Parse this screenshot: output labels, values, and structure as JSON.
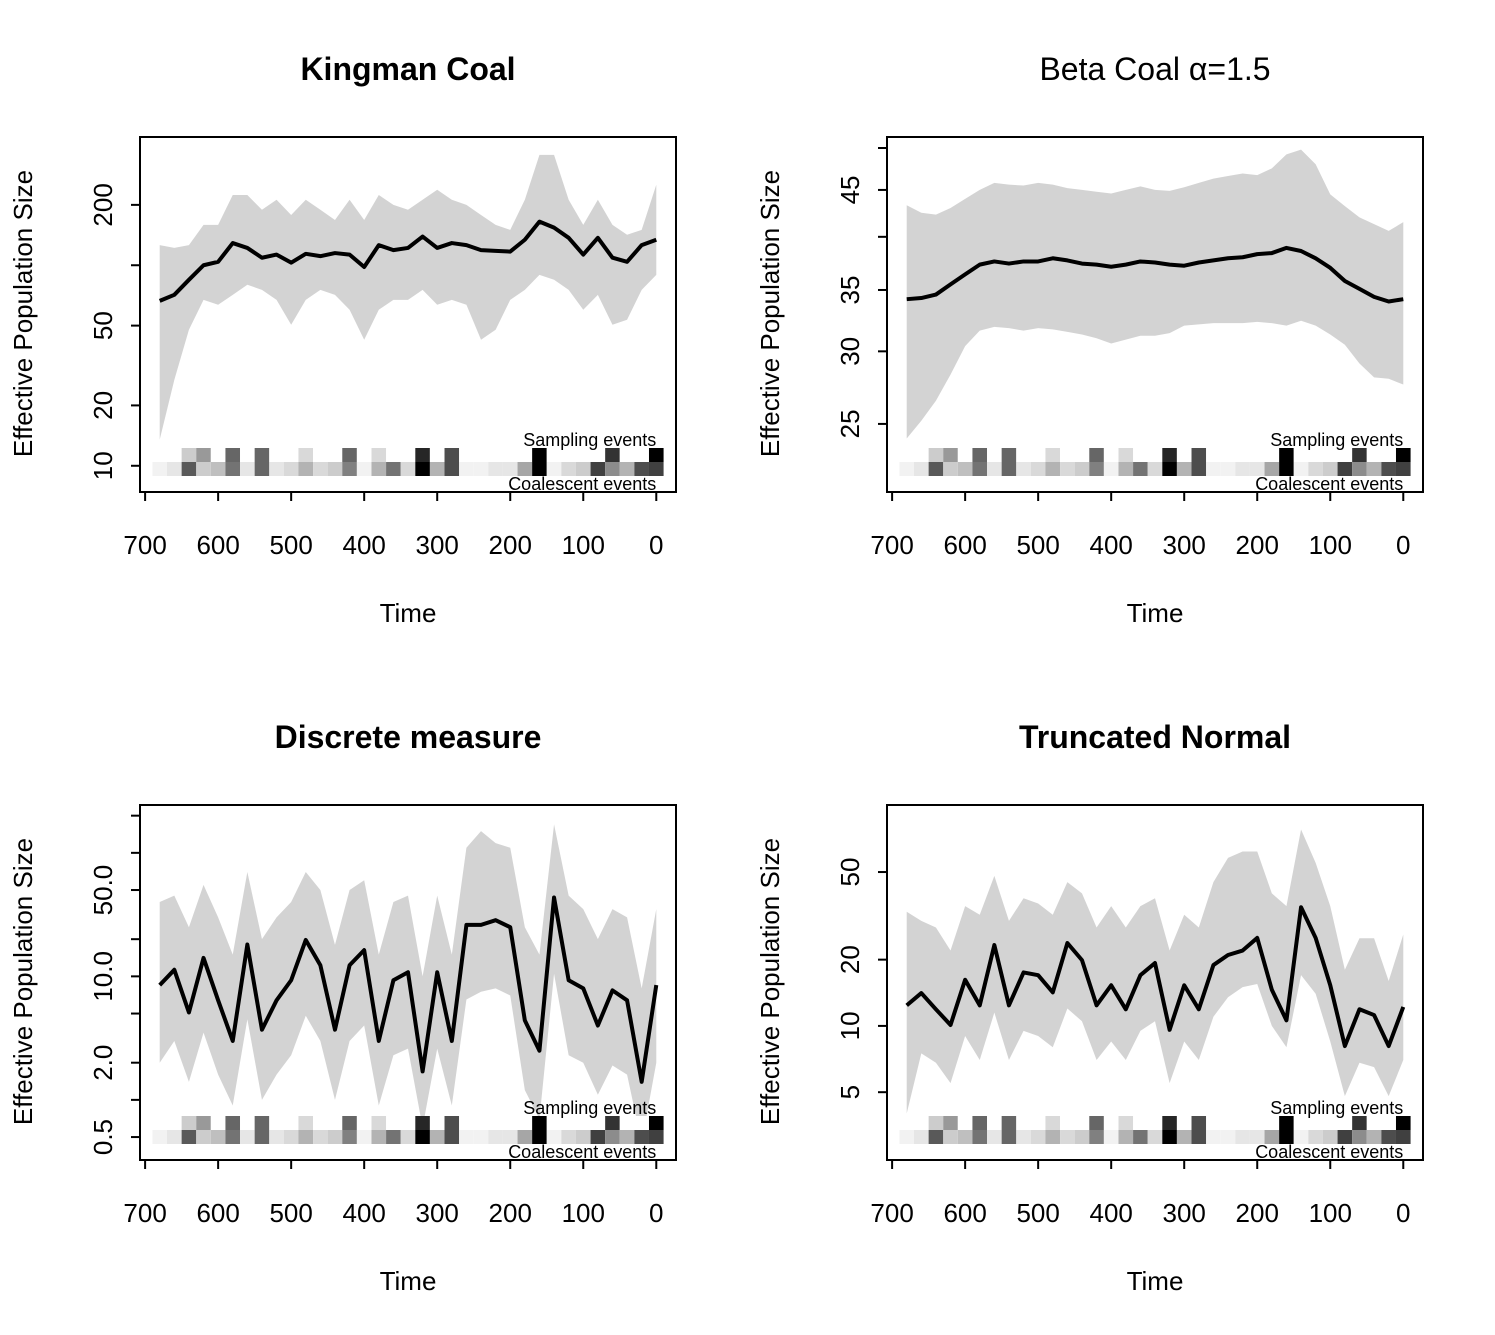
{
  "chart_data": [
    {
      "type": "line",
      "title": "Kingman Coal",
      "title_bold": true,
      "xlabel": "Time",
      "ylabel": "Effective Population Size",
      "x": [
        680,
        660,
        640,
        620,
        600,
        580,
        560,
        540,
        520,
        500,
        480,
        460,
        440,
        420,
        400,
        380,
        360,
        340,
        320,
        300,
        280,
        260,
        240,
        220,
        200,
        180,
        160,
        140,
        120,
        100,
        80,
        60,
        40,
        20,
        0
      ],
      "values": [
        66.4,
        71.2,
        84.6,
        100,
        104,
        129,
        122,
        109,
        113,
        103,
        114,
        111,
        115,
        113,
        98,
        126,
        119,
        122,
        139,
        122,
        129,
        126,
        119,
        118,
        117,
        134,
        165,
        154,
        137,
        113,
        137,
        109,
        104,
        126,
        134
      ],
      "band": {
        "lower": [
          13.5,
          26.8,
          47.7,
          67.2,
          63.5,
          71.2,
          79.9,
          75.4,
          67.2,
          50.5,
          67.2,
          75.4,
          71.2,
          60,
          42.5,
          60,
          67.2,
          67.2,
          75.4,
          63.5,
          67.2,
          63.5,
          42.5,
          47.7,
          67.2,
          75.4,
          89.5,
          84.6,
          75.4,
          60,
          71.2,
          50.5,
          53.5,
          75.4,
          89.5
        ],
        "upper": [
          126,
          122,
          126,
          159,
          159,
          224,
          224,
          189,
          212,
          178,
          212,
          189,
          168,
          212,
          168,
          224,
          200,
          189,
          212,
          238,
          212,
          200,
          178,
          159,
          150,
          212,
          355,
          355,
          212,
          159,
          212,
          159,
          142,
          150,
          252
        ]
      },
      "line_color": "#000000",
      "band_color": "#d3d3d3",
      "xlim": [
        707,
        -27
      ],
      "xticks": [
        700,
        600,
        500,
        400,
        300,
        200,
        100,
        0
      ],
      "ylog": true,
      "ylim": [
        7.4,
        436
      ],
      "yticks": [
        10,
        20,
        50,
        200
      ],
      "yticks_unlabeled": [
        100
      ],
      "event_strips": [
        {
          "name": "Sampling events",
          "values": [
            0,
            0,
            0.2,
            0.4,
            0,
            0.6,
            0,
            0.6,
            0,
            0,
            0.15,
            0,
            0,
            0.6,
            0,
            0.15,
            0,
            0,
            0.85,
            0,
            0.7,
            0,
            0,
            0,
            0,
            0,
            1,
            0,
            0,
            0,
            0,
            0.8,
            0,
            0,
            1
          ]
        },
        {
          "name": "Coalescent events",
          "values": [
            0.05,
            0.1,
            0.65,
            0.2,
            0.25,
            0.55,
            0.1,
            0.6,
            0.1,
            0.15,
            0.3,
            0.15,
            0.2,
            0.5,
            0.05,
            0.3,
            0.55,
            0.15,
            1,
            0.3,
            0.7,
            0.05,
            0.05,
            0.1,
            0.1,
            0.35,
            1,
            0.05,
            0.15,
            0.2,
            0.75,
            0.45,
            0.3,
            0.7,
            0.75
          ]
        }
      ]
    },
    {
      "type": "line",
      "title": "Beta Coal α=1.5",
      "title_bold": false,
      "xlabel": "Time",
      "ylabel": "Effective Population Size",
      "x": [
        680,
        660,
        640,
        620,
        600,
        580,
        560,
        540,
        520,
        500,
        480,
        460,
        440,
        420,
        400,
        380,
        360,
        340,
        320,
        300,
        280,
        260,
        240,
        220,
        200,
        180,
        160,
        140,
        120,
        100,
        80,
        60,
        40,
        20,
        0
      ],
      "values": [
        34.2,
        34.3,
        34.6,
        35.5,
        36.4,
        37.3,
        37.6,
        37.4,
        37.6,
        37.6,
        37.9,
        37.7,
        37.4,
        37.3,
        37.1,
        37.3,
        37.6,
        37.5,
        37.3,
        37.2,
        37.5,
        37.7,
        37.9,
        38.0,
        38.3,
        38.4,
        38.9,
        38.6,
        37.9,
        37.0,
        35.8,
        35.1,
        34.4,
        34.0,
        34.2
      ],
      "band": {
        "lower": [
          24.1,
          25.2,
          26.5,
          28.3,
          30.4,
          31.6,
          31.9,
          31.8,
          31.6,
          31.8,
          31.7,
          31.5,
          31.3,
          31.0,
          30.6,
          30.9,
          31.2,
          31.2,
          31.4,
          32.0,
          32.1,
          32.2,
          32.2,
          32.2,
          32.3,
          32.2,
          32.0,
          32.4,
          32.0,
          31.3,
          30.5,
          29.1,
          28.1,
          28.0,
          27.6
        ],
        "upper": [
          43.3,
          42.5,
          42.3,
          43.0,
          44.0,
          45.0,
          45.8,
          45.6,
          45.5,
          45.8,
          45.6,
          45.2,
          45.0,
          44.8,
          44.6,
          45.0,
          45.4,
          45.0,
          44.9,
          45.3,
          45.8,
          46.3,
          46.6,
          46.9,
          46.7,
          47.5,
          49.2,
          49.8,
          48.0,
          44.5,
          43.2,
          42.0,
          41.3,
          40.6,
          41.5
        ]
      },
      "line_color": "#000000",
      "band_color": "#d3d3d3",
      "xlim": [
        707,
        -27
      ],
      "xticks": [
        700,
        600,
        500,
        400,
        300,
        200,
        100,
        0
      ],
      "ylog": true,
      "ylim": [
        21.07,
        51.4
      ],
      "yticks": [
        25,
        30,
        35,
        45
      ],
      "yticks_unlabeled": [
        40,
        50
      ],
      "event_strips": [
        {
          "name": "Sampling events",
          "values": [
            0,
            0,
            0.2,
            0.4,
            0,
            0.6,
            0,
            0.6,
            0,
            0,
            0.15,
            0,
            0,
            0.6,
            0,
            0.15,
            0,
            0,
            0.85,
            0,
            0.7,
            0,
            0,
            0,
            0,
            0,
            1,
            0,
            0,
            0,
            0,
            0.8,
            0,
            0,
            1
          ]
        },
        {
          "name": "Coalescent events",
          "values": [
            0.05,
            0.1,
            0.65,
            0.2,
            0.25,
            0.55,
            0.1,
            0.6,
            0.1,
            0.15,
            0.3,
            0.15,
            0.2,
            0.5,
            0.05,
            0.3,
            0.55,
            0.15,
            1,
            0.3,
            0.7,
            0.05,
            0.05,
            0.1,
            0.1,
            0.35,
            1,
            0.05,
            0.15,
            0.2,
            0.75,
            0.45,
            0.3,
            0.7,
            0.75
          ]
        }
      ]
    },
    {
      "type": "line",
      "title": "Discrete measure",
      "title_bold": true,
      "xlabel": "Time",
      "ylabel": "Effective Population Size",
      "x": [
        680,
        660,
        640,
        620,
        600,
        580,
        560,
        540,
        520,
        500,
        480,
        460,
        440,
        420,
        400,
        380,
        360,
        340,
        320,
        300,
        280,
        260,
        240,
        220,
        200,
        180,
        160,
        140,
        120,
        100,
        80,
        60,
        40,
        20,
        0
      ],
      "values": [
        8.5,
        11.3,
        5.1,
        14.1,
        6.4,
        3.0,
        18.1,
        3.7,
        6.4,
        9.3,
        19.7,
        12.3,
        3.7,
        12.3,
        16.3,
        3.0,
        9.3,
        10.8,
        1.7,
        10.8,
        3.0,
        26.1,
        26.1,
        28.5,
        25,
        4.4,
        2.5,
        43.5,
        9.3,
        8.0,
        4.0,
        7.7,
        6.4,
        1.4,
        8.5
      ],
      "band": {
        "lower": [
          2.0,
          3.0,
          1.4,
          3.5,
          1.6,
          0.9,
          4.5,
          1.0,
          1.6,
          2.3,
          4.8,
          3.0,
          1.0,
          3.0,
          4.0,
          0.9,
          2.3,
          2.6,
          0.6,
          2.6,
          0.9,
          6.5,
          7.5,
          8.0,
          7.0,
          1.2,
          0.7,
          10.5,
          2.3,
          2.0,
          1.1,
          1.9,
          1.6,
          0.45,
          2.0
        ],
        "upper": [
          40,
          45,
          25,
          55,
          30,
          15,
          70,
          20,
          30,
          40,
          70,
          50,
          18,
          50,
          60,
          15,
          40,
          45,
          10,
          45,
          15,
          110,
          150,
          120,
          110,
          25,
          15,
          170,
          45,
          35,
          20,
          35,
          30,
          8,
          35
        ]
      },
      "line_color": "#000000",
      "band_color": "#d3d3d3",
      "xlim": [
        707,
        -27
      ],
      "xticks": [
        700,
        600,
        500,
        400,
        300,
        200,
        100,
        0
      ],
      "ylog": true,
      "ylim": [
        0.326,
        244
      ],
      "yticks": [
        0.5,
        {
          "value": 2,
          "label": "2.0"
        },
        {
          "value": 10,
          "label": "10.0"
        },
        {
          "value": 50,
          "label": "50.0"
        }
      ],
      "yticks_unlabeled": [
        1,
        5,
        20,
        100,
        200
      ],
      "event_strips": [
        {
          "name": "Sampling events",
          "values": [
            0,
            0,
            0.2,
            0.4,
            0,
            0.6,
            0,
            0.6,
            0,
            0,
            0.15,
            0,
            0,
            0.6,
            0,
            0.15,
            0,
            0,
            0.85,
            0,
            0.7,
            0,
            0,
            0,
            0,
            0,
            1,
            0,
            0,
            0,
            0,
            0.8,
            0,
            0,
            1
          ]
        },
        {
          "name": "Coalescent events",
          "values": [
            0.05,
            0.1,
            0.65,
            0.2,
            0.25,
            0.55,
            0.1,
            0.6,
            0.1,
            0.15,
            0.3,
            0.15,
            0.2,
            0.5,
            0.05,
            0.3,
            0.55,
            0.15,
            1,
            0.3,
            0.7,
            0.05,
            0.05,
            0.1,
            0.1,
            0.35,
            1,
            0.05,
            0.15,
            0.2,
            0.75,
            0.45,
            0.3,
            0.7,
            0.75
          ]
        }
      ]
    },
    {
      "type": "line",
      "title": "Truncated Normal",
      "title_bold": true,
      "xlabel": "Time",
      "ylabel": "Effective Population Size",
      "x": [
        680,
        660,
        640,
        620,
        600,
        580,
        560,
        540,
        520,
        500,
        480,
        460,
        440,
        420,
        400,
        380,
        360,
        340,
        320,
        300,
        280,
        260,
        240,
        220,
        200,
        180,
        160,
        140,
        120,
        100,
        80,
        60,
        40,
        20,
        0
      ],
      "values": [
        12.4,
        14.1,
        11.9,
        10.1,
        16.2,
        12.4,
        23.3,
        12.4,
        17.5,
        17.0,
        14.2,
        23.8,
        19.9,
        12.4,
        15.3,
        11.9,
        17.0,
        19.3,
        9.6,
        15.3,
        11.9,
        18.9,
        21.0,
        22.0,
        25.1,
        14.6,
        10.6,
        34.6,
        25.1,
        15.3,
        8.1,
        11.9,
        11.2,
        8.1,
        12.2
      ],
      "band": {
        "lower": [
          4.0,
          7.5,
          6.8,
          5.5,
          9.0,
          7.0,
          11.5,
          7.0,
          9.5,
          9.0,
          8.0,
          12.0,
          10.5,
          7.0,
          8.5,
          7.0,
          9.5,
          10.5,
          5.5,
          8.5,
          7.0,
          11.0,
          13.5,
          15.0,
          15.5,
          10.0,
          8.0,
          17.0,
          14.0,
          8.5,
          4.8,
          6.8,
          6.5,
          4.8,
          7.0
        ],
        "upper": [
          33,
          30,
          28,
          22,
          35,
          32,
          48,
          30,
          38,
          36,
          32,
          45,
          40,
          28,
          35,
          28,
          35,
          38,
          22,
          32,
          28,
          45,
          58,
          62,
          62,
          40,
          35,
          78,
          55,
          35,
          18,
          25,
          25,
          16,
          26
        ]
      },
      "line_color": "#000000",
      "band_color": "#d3d3d3",
      "xlim": [
        707,
        -27
      ],
      "xticks": [
        700,
        600,
        500,
        400,
        300,
        200,
        100,
        0
      ],
      "ylog": true,
      "ylim": [
        2.46,
        100.8
      ],
      "yticks": [
        5,
        10,
        20,
        50
      ],
      "yticks_unlabeled": [],
      "event_strips": [
        {
          "name": "Sampling events",
          "values": [
            0,
            0,
            0.2,
            0.4,
            0,
            0.6,
            0,
            0.6,
            0,
            0,
            0.15,
            0,
            0,
            0.6,
            0,
            0.15,
            0,
            0,
            0.85,
            0,
            0.7,
            0,
            0,
            0,
            0,
            0,
            1,
            0,
            0,
            0,
            0,
            0.8,
            0,
            0,
            1
          ]
        },
        {
          "name": "Coalescent events",
          "values": [
            0.05,
            0.1,
            0.65,
            0.2,
            0.25,
            0.55,
            0.1,
            0.6,
            0.1,
            0.15,
            0.3,
            0.15,
            0.2,
            0.5,
            0.05,
            0.3,
            0.55,
            0.15,
            1,
            0.3,
            0.7,
            0.05,
            0.05,
            0.1,
            0.1,
            0.35,
            1,
            0.05,
            0.15,
            0.2,
            0.75,
            0.45,
            0.3,
            0.7,
            0.75
          ]
        }
      ]
    }
  ]
}
